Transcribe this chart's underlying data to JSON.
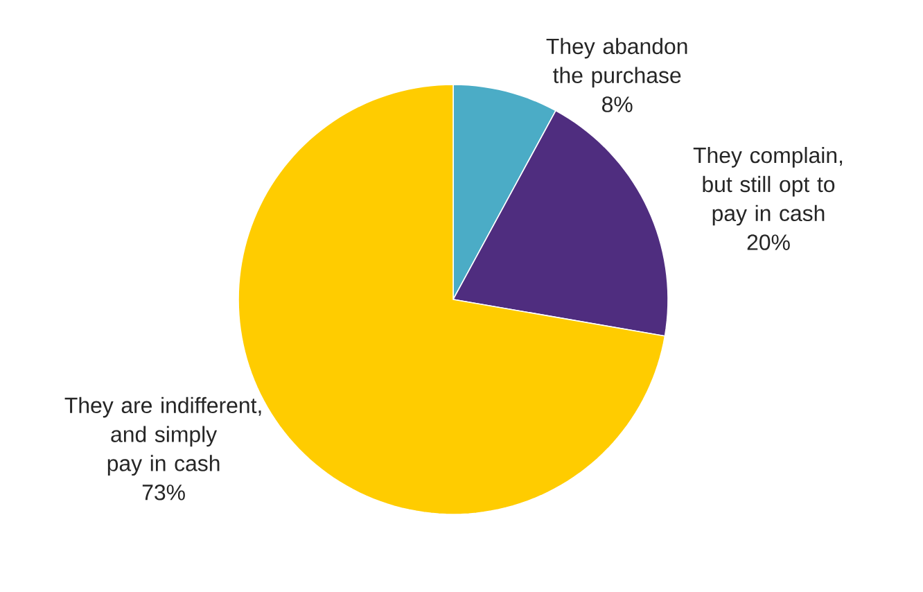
{
  "chart_data": {
    "type": "pie",
    "categories": [
      "They abandon the purchase",
      "They complain, but still opt to pay in cash",
      "They are indifferent, and simply pay in cash"
    ],
    "values": [
      8,
      20,
      73
    ],
    "value_labels": [
      "8%",
      "20%",
      "73%"
    ],
    "colors": [
      "#4bacc6",
      "#4f2d7f",
      "#ffcc00"
    ]
  }
}
